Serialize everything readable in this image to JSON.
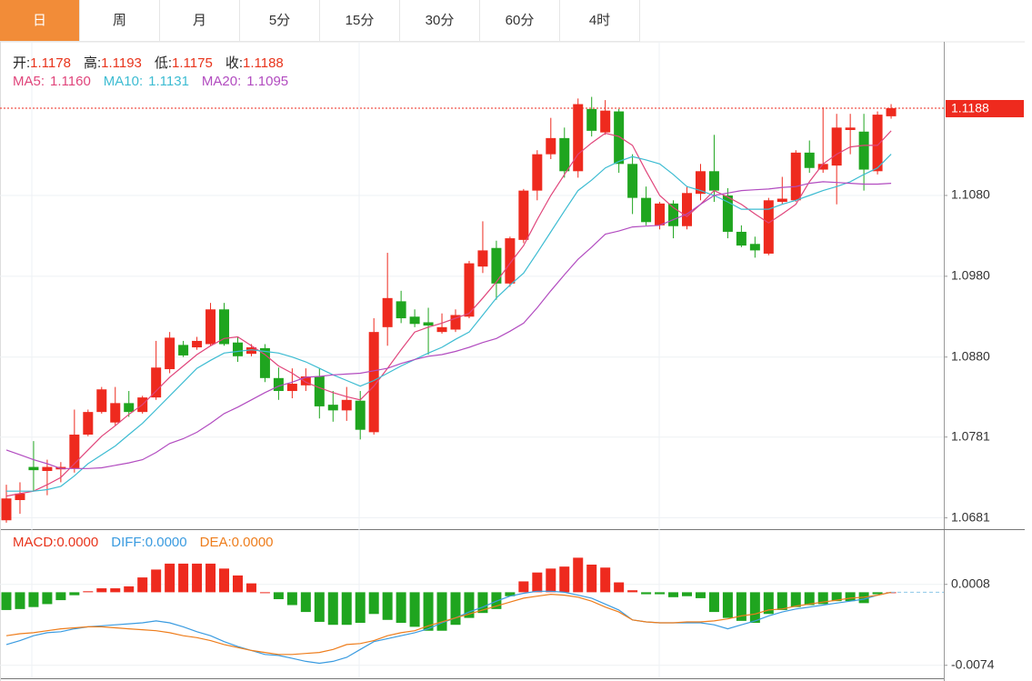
{
  "tabs": [
    "日",
    "周",
    "月",
    "5分",
    "15分",
    "30分",
    "60分",
    "4时"
  ],
  "active_tab": 0,
  "chart_data": [
    {
      "type": "candlestick",
      "info": [
        {
          "label": "开:",
          "value": "1.1178"
        },
        {
          "label": "高:",
          "value": "1.1193"
        },
        {
          "label": "低:",
          "value": "1.1175"
        },
        {
          "label": "收:",
          "value": "1.1188"
        }
      ],
      "up_color": "#ee2a1e",
      "down_color": "#1fa51f",
      "open": [
        1.0678,
        1.0703,
        1.0744,
        1.0739,
        1.0741,
        1.0742,
        1.0784,
        1.0812,
        1.0799,
        1.0823,
        1.0812,
        1.083,
        1.0865,
        1.0895,
        1.0892,
        1.0896,
        1.0939,
        1.0898,
        1.0884,
        1.0891,
        1.0854,
        1.0838,
        1.0845,
        1.0856,
        1.0821,
        1.0814,
        1.0826,
        1.0787,
        1.0917,
        1.0949,
        1.093,
        1.0923,
        1.0911,
        1.0914,
        1.093,
        1.0992,
        1.1015,
        1.0971,
        1.1025,
        1.1086,
        1.1131,
        1.1151,
        1.111,
        1.1187,
        1.1158,
        1.1184,
        1.1119,
        1.1077,
        1.1043,
        1.107,
        1.1042,
        1.1082,
        1.111,
        1.108,
        1.1035,
        1.102,
        1.1008,
        1.1072,
        1.1074,
        1.1133,
        1.1112,
        1.1117,
        1.1161,
        1.1159,
        1.111,
        1.1178
      ],
      "high": [
        1.0722,
        1.0725,
        1.0776,
        1.0753,
        1.075,
        1.0815,
        1.0815,
        1.0843,
        1.0843,
        1.0838,
        1.0832,
        1.09,
        1.0911,
        1.09,
        1.0905,
        1.0947,
        1.0947,
        1.0905,
        1.0896,
        1.0896,
        1.0867,
        1.0866,
        1.0866,
        1.0866,
        1.0838,
        1.0843,
        1.0838,
        1.0928,
        1.1009,
        1.0962,
        1.0939,
        1.0941,
        1.0934,
        1.0939,
        1.0999,
        1.1048,
        1.1024,
        1.1029,
        1.1088,
        1.1136,
        1.1176,
        1.1164,
        1.12,
        1.1202,
        1.1198,
        1.1187,
        1.1131,
        1.1091,
        1.1072,
        1.1074,
        1.1091,
        1.1119,
        1.1155,
        1.1089,
        1.1043,
        1.1029,
        1.1077,
        1.1103,
        1.1136,
        1.1148,
        1.1189,
        1.1181,
        1.1181,
        1.1181,
        1.1184,
        1.1193
      ],
      "low": [
        1.0675,
        1.0686,
        1.0714,
        1.0709,
        1.0725,
        1.0737,
        1.0782,
        1.081,
        1.0795,
        1.0806,
        1.081,
        1.0827,
        1.086,
        1.088,
        1.0889,
        1.0894,
        1.0894,
        1.0874,
        1.0881,
        1.0849,
        1.0827,
        1.0829,
        1.0838,
        1.0804,
        1.08,
        1.0801,
        1.0778,
        1.0784,
        1.0894,
        1.0922,
        1.0917,
        1.0883,
        1.0909,
        1.0911,
        1.0928,
        1.0984,
        1.0951,
        1.0967,
        1.1021,
        1.1074,
        1.1125,
        1.1102,
        1.1102,
        1.1153,
        1.1155,
        1.1108,
        1.1057,
        1.1043,
        1.1038,
        1.1027,
        1.1038,
        1.1074,
        1.1072,
        1.1027,
        1.1016,
        1.1003,
        1.1006,
        1.1069,
        1.1072,
        1.1108,
        1.1108,
        1.1069,
        1.1131,
        1.1086,
        1.1106,
        1.1175
      ],
      "close": [
        1.0705,
        1.0711,
        1.074,
        1.0744,
        1.0744,
        1.0784,
        1.0812,
        1.084,
        1.0823,
        1.0812,
        1.083,
        1.0867,
        1.0904,
        1.0882,
        1.09,
        1.0939,
        1.0896,
        1.0881,
        1.0892,
        1.0854,
        1.0838,
        1.0847,
        1.0856,
        1.0819,
        1.0814,
        1.0827,
        1.079,
        1.0911,
        1.0953,
        1.0928,
        1.0921,
        1.0919,
        1.0917,
        1.0932,
        1.0996,
        1.1012,
        1.0971,
        1.1027,
        1.1086,
        1.1131,
        1.1151,
        1.111,
        1.1193,
        1.116,
        1.1185,
        1.1119,
        1.1077,
        1.1047,
        1.107,
        1.1042,
        1.1083,
        1.111,
        1.1086,
        1.1035,
        1.1018,
        1.1012,
        1.1074,
        1.1076,
        1.1133,
        1.1114,
        1.1119,
        1.1164,
        1.1164,
        1.1112,
        1.118,
        1.1188
      ],
      "series": [
        {
          "name": "MA5:",
          "value_label": "1.1160",
          "color": "#e0457b",
          "values": [
            1.0708,
            1.0711,
            1.0714,
            1.0722,
            1.0731,
            1.0748,
            1.0765,
            1.0782,
            1.0795,
            1.0809,
            1.0821,
            1.0838,
            1.0855,
            1.0869,
            1.0883,
            1.0894,
            1.0903,
            1.0905,
            1.0894,
            1.0883,
            1.0869,
            1.086,
            1.0849,
            1.0842,
            1.0836,
            1.0831,
            1.0827,
            1.0844,
            1.0866,
            1.0889,
            1.0911,
            1.0917,
            1.0922,
            1.0928,
            1.0934,
            1.0953,
            1.0973,
            1.0996,
            1.1018,
            1.105,
            1.108,
            1.1106,
            1.1131,
            1.1145,
            1.1157,
            1.1153,
            1.1142,
            1.111,
            1.108,
            1.1065,
            1.1054,
            1.1069,
            1.1086,
            1.1078,
            1.1069,
            1.1057,
            1.1046,
            1.1057,
            1.1069,
            1.1097,
            1.1119,
            1.1131,
            1.114,
            1.1142,
            1.1142,
            1.116
          ]
        },
        {
          "name": "MA10:",
          "value_label": "1.1131",
          "color": "#3dbcd2",
          "values": [
            1.0714,
            1.0714,
            1.0714,
            1.0716,
            1.072,
            1.0733,
            1.0748,
            1.0759,
            1.077,
            1.0784,
            1.0798,
            1.0815,
            1.0832,
            1.0849,
            1.0866,
            1.0876,
            1.0885,
            1.0887,
            1.0889,
            1.0887,
            1.0885,
            1.088,
            1.0874,
            1.0866,
            1.0858,
            1.0851,
            1.0844,
            1.0851,
            1.086,
            1.0869,
            1.0877,
            1.0885,
            1.0892,
            1.0902,
            1.0911,
            1.0932,
            1.0953,
            1.0969,
            1.0984,
            1.1009,
            1.1035,
            1.1061,
            1.1086,
            1.1099,
            1.1114,
            1.1122,
            1.1128,
            1.1124,
            1.1119,
            1.1106,
            1.1091,
            1.1086,
            1.108,
            1.1072,
            1.1063,
            1.1063,
            1.1063,
            1.1069,
            1.1074,
            1.108,
            1.1086,
            1.1091,
            1.1097,
            1.1106,
            1.1114,
            1.1131
          ]
        },
        {
          "name": "MA20:",
          "value_label": "1.1095",
          "color": "#b24cc0",
          "values": [
            1.0765,
            1.0759,
            1.0753,
            1.0748,
            1.0742,
            1.0742,
            1.0742,
            1.0743,
            1.0746,
            1.0749,
            1.0753,
            1.0762,
            1.0773,
            1.0779,
            1.0787,
            1.0798,
            1.081,
            1.0818,
            1.0827,
            1.0836,
            1.0844,
            1.0849,
            1.0855,
            1.0856,
            1.0858,
            1.0859,
            1.086,
            1.0863,
            1.0866,
            1.0872,
            1.0877,
            1.0881,
            1.0883,
            1.0887,
            1.0892,
            1.0898,
            1.0903,
            1.0912,
            1.0922,
            1.0941,
            1.0962,
            1.0982,
            1.1001,
            1.1016,
            1.1032,
            1.1036,
            1.1041,
            1.1042,
            1.1043,
            1.105,
            1.1057,
            1.1069,
            1.108,
            1.1083,
            1.1086,
            1.1087,
            1.1088,
            1.109,
            1.1091,
            1.1095,
            1.1097,
            1.1096,
            1.1095,
            1.1094,
            1.1094,
            1.1095
          ]
        }
      ],
      "ylim": [
        1.0667,
        1.1269
      ],
      "yticks": [
        {
          "value": 1.108,
          "label": "1.1080"
        },
        {
          "value": 1.098,
          "label": "1.0980"
        },
        {
          "value": 1.088,
          "label": "1.0880"
        },
        {
          "value": 1.0781,
          "label": "1.0781"
        },
        {
          "value": 1.0681,
          "label": "1.0681"
        }
      ],
      "last_price": {
        "value": 1.1188,
        "label": "1.1188"
      },
      "grid": true
    },
    {
      "type": "macd",
      "up_color": "#ee2a1e",
      "down_color": "#1fa51f",
      "histogram": {
        "name": "MACD:",
        "value_label": "0.0000",
        "color": "#e8341c",
        "values": [
          -0.0018,
          -0.0017,
          -0.0015,
          -0.0012,
          -0.0008,
          -0.0003,
          0.0001,
          0.0004,
          0.0004,
          0.0006,
          0.0015,
          0.0023,
          0.0029,
          0.0029,
          0.0029,
          0.0029,
          0.0024,
          0.0017,
          0.0009,
          0,
          -0.0007,
          -0.0013,
          -0.002,
          -0.003,
          -0.0033,
          -0.0033,
          -0.0031,
          -0.0022,
          -0.0028,
          -0.0031,
          -0.0035,
          -0.0039,
          -0.0039,
          -0.0033,
          -0.0026,
          -0.0021,
          -0.0017,
          -0.0004,
          0.0011,
          0.002,
          0.0024,
          0.0026,
          0.0035,
          0.0028,
          0.0025,
          0.001,
          0.0002,
          -0.0002,
          -0.0002,
          -0.0005,
          -0.0004,
          -0.0006,
          -0.002,
          -0.0026,
          -0.0029,
          -0.0031,
          -0.0022,
          -0.0018,
          -0.0015,
          -0.0013,
          -0.0012,
          -0.0009,
          -0.0009,
          -0.0011,
          -0.0002,
          0
        ]
      },
      "series": [
        {
          "name": "DIFF:",
          "value_label": "0.0000",
          "color": "#3a9be0",
          "values": [
            -0.0053,
            -0.0049,
            -0.0044,
            -0.0041,
            -0.004,
            -0.0037,
            -0.0035,
            -0.0034,
            -0.0033,
            -0.0032,
            -0.0031,
            -0.0029,
            -0.0031,
            -0.0035,
            -0.004,
            -0.0044,
            -0.005,
            -0.0055,
            -0.0059,
            -0.0063,
            -0.0064,
            -0.0067,
            -0.007,
            -0.0072,
            -0.007,
            -0.0066,
            -0.0058,
            -0.005,
            -0.0047,
            -0.0044,
            -0.0041,
            -0.0037,
            -0.0031,
            -0.0026,
            -0.002,
            -0.0015,
            -0.0009,
            -0.0004,
            -0.0001,
            0.0001,
            0.0001,
            0,
            -0.0003,
            -0.0006,
            -0.0012,
            -0.0018,
            -0.0028,
            -0.003,
            -0.0031,
            -0.0031,
            -0.0031,
            -0.0031,
            -0.0033,
            -0.0037,
            -0.0033,
            -0.0029,
            -0.0024,
            -0.002,
            -0.0017,
            -0.0015,
            -0.0013,
            -0.0011,
            -0.0009,
            -0.0007,
            -0.0003,
            0
          ]
        },
        {
          "name": "DEA:",
          "value_label": "0.0000",
          "color": "#ee7d1c",
          "values": [
            -0.0044,
            -0.0042,
            -0.0041,
            -0.0039,
            -0.0037,
            -0.0036,
            -0.0035,
            -0.0035,
            -0.0036,
            -0.0037,
            -0.0038,
            -0.0039,
            -0.0041,
            -0.0044,
            -0.0046,
            -0.0049,
            -0.0053,
            -0.0056,
            -0.0059,
            -0.0061,
            -0.0063,
            -0.0063,
            -0.0062,
            -0.0061,
            -0.0058,
            -0.0053,
            -0.0052,
            -0.0049,
            -0.0044,
            -0.0041,
            -0.0039,
            -0.0034,
            -0.003,
            -0.0026,
            -0.0022,
            -0.0018,
            -0.0014,
            -0.001,
            -0.0006,
            -0.0004,
            -0.0002,
            -0.0003,
            -0.0005,
            -0.0009,
            -0.0015,
            -0.002,
            -0.0028,
            -0.003,
            -0.0031,
            -0.0031,
            -0.003,
            -0.003,
            -0.0029,
            -0.0027,
            -0.0024,
            -0.0022,
            -0.0018,
            -0.0017,
            -0.0014,
            -0.0012,
            -0.001,
            -0.0008,
            -0.0006,
            -0.0005,
            -0.0003,
            0
          ]
        }
      ],
      "ylim": [
        -0.0089,
        0.0063
      ],
      "yticks": [
        {
          "value": 0.0008,
          "label": "0.0008"
        },
        {
          "value": -0.0074,
          "label": "-0.0074"
        }
      ],
      "grid": true
    }
  ]
}
